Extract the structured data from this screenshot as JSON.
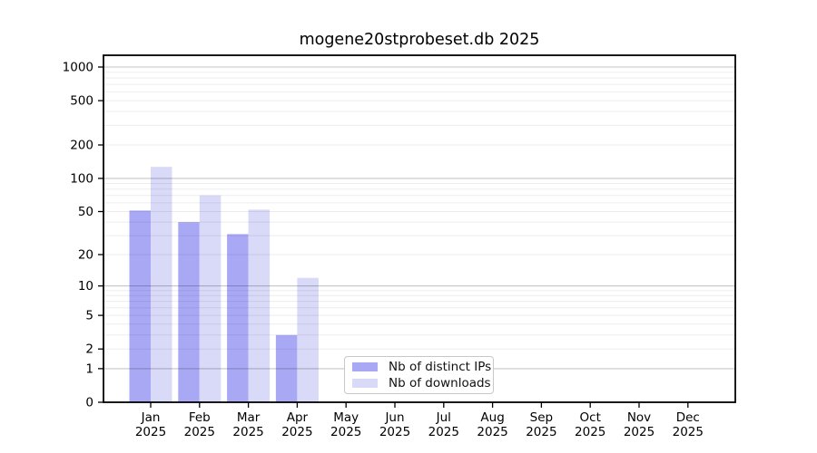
{
  "chart_data": {
    "type": "bar",
    "title": "mogene20stprobeset.db 2025",
    "x_tick_labels_line1": [
      "Jan",
      "Feb",
      "Mar",
      "Apr",
      "May",
      "Jun",
      "Jul",
      "Aug",
      "Sep",
      "Oct",
      "Nov",
      "Dec"
    ],
    "x_tick_labels_line2": "2025",
    "y_tick_labels": [
      0,
      1,
      2,
      5,
      10,
      20,
      50,
      100,
      200,
      500,
      1000
    ],
    "y_scale": "log10(1+x)",
    "ylim": [
      0,
      1270
    ],
    "grid": "on",
    "legend_position": "lower center",
    "series": [
      {
        "name": "Nb of distinct IPs",
        "color": "#a8a8f5",
        "values": [
          51,
          40,
          31,
          3,
          0,
          0,
          0,
          0,
          0,
          0,
          0,
          0
        ]
      },
      {
        "name": "Nb of downloads",
        "color": "#d9d9f8",
        "values": [
          127,
          70,
          52,
          12,
          0,
          0,
          0,
          0,
          0,
          0,
          0,
          0
        ]
      }
    ]
  },
  "colors": {
    "major_grid": "#c6c6c6",
    "minor_grid": "#ededed",
    "axis": "#000000",
    "legend_border": "#c8c8c8",
    "background": "#ffffff"
  }
}
